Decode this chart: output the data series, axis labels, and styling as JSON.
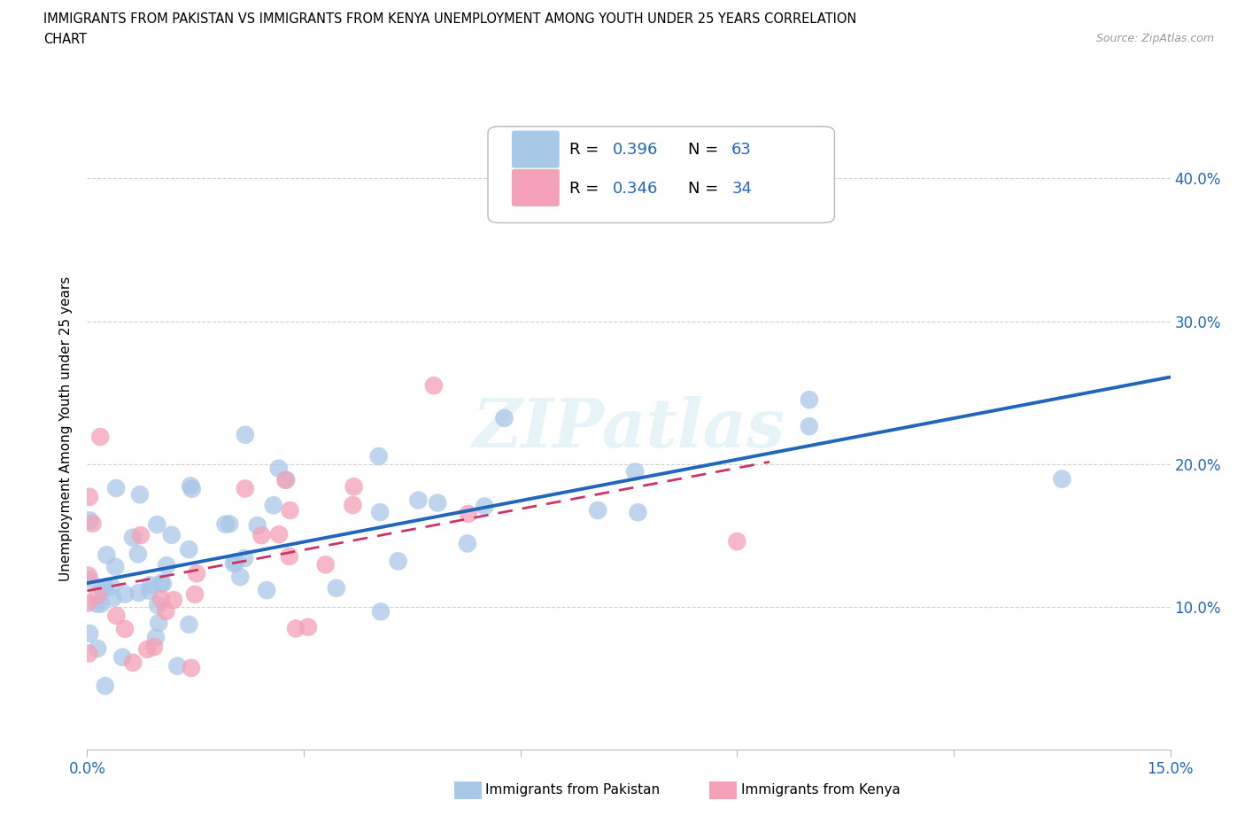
{
  "title_line1": "IMMIGRANTS FROM PAKISTAN VS IMMIGRANTS FROM KENYA UNEMPLOYMENT AMONG YOUTH UNDER 25 YEARS CORRELATION",
  "title_line2": "CHART",
  "source": "Source: ZipAtlas.com",
  "ylabel": "Unemployment Among Youth under 25 years",
  "xlim": [
    0.0,
    0.15
  ],
  "ylim": [
    0.0,
    0.45
  ],
  "xticks": [
    0.0,
    0.03,
    0.06,
    0.09,
    0.12,
    0.15
  ],
  "xtick_labels": [
    "0.0%",
    "",
    "",
    "",
    "",
    "15.0%"
  ],
  "yticks": [
    0.0,
    0.1,
    0.2,
    0.3,
    0.4
  ],
  "ytick_labels": [
    "",
    "10.0%",
    "20.0%",
    "30.0%",
    "40.0%"
  ],
  "pakistan_R": 0.396,
  "pakistan_N": 63,
  "kenya_R": 0.346,
  "kenya_N": 34,
  "pakistan_color": "#a8c8e8",
  "kenya_color": "#f4a0b8",
  "pakistan_line_color": "#2266bb",
  "kenya_line_color": "#cc3366",
  "background_color": "#ffffff",
  "grid_color": "#d0d0d0",
  "watermark": "ZIPatlas",
  "pak_intercept": 0.115,
  "pak_slope": 0.9,
  "ken_intercept": 0.115,
  "ken_slope": 0.55
}
